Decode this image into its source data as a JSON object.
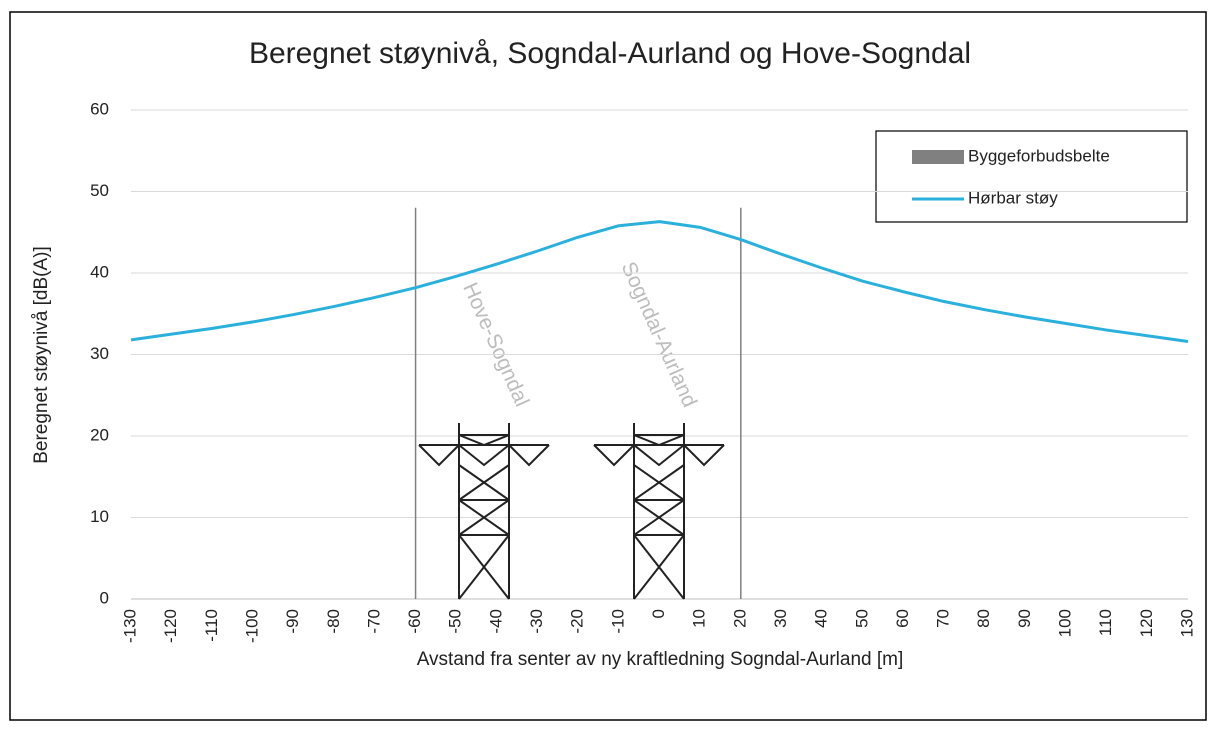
{
  "chart_data": {
    "type": "line",
    "title": "Beregnet støynivå, Sogndal-Aurland og Hove-Sogndal",
    "x_label": "Avstand fra senter av ny kraftledning Sogndal-Aurland [m]",
    "y_label": "Beregnet støynivå [dB(A)]",
    "xlim": [
      -130,
      130
    ],
    "xticks": [
      -130,
      -120,
      -110,
      -100,
      -90,
      -80,
      -70,
      -60,
      -50,
      -40,
      -30,
      -20,
      -10,
      0,
      10,
      20,
      30,
      40,
      50,
      60,
      70,
      80,
      90,
      100,
      110,
      120,
      130
    ],
    "ylim": [
      0,
      60
    ],
    "yticks": [
      0,
      10,
      20,
      30,
      40,
      50,
      60
    ],
    "grid": true,
    "legend": "upper right",
    "annotations": [
      "Hove-Sogndal",
      "Sogndal-Aurland"
    ],
    "series": [
      {
        "name": "Byggeforbudsbelte",
        "color": "#808080",
        "kind": "vline",
        "x": [
          -60,
          20
        ],
        "values": [
          48,
          48
        ]
      },
      {
        "name": "Hørbar støy",
        "color": "#2ab0dc",
        "kind": "line",
        "x": [
          -130,
          -120,
          -110,
          -100,
          -90,
          -80,
          -70,
          -60,
          -50,
          -40,
          -30,
          -20,
          -10,
          0,
          10,
          20,
          30,
          40,
          50,
          60,
          70,
          80,
          90,
          100,
          110,
          120,
          130
        ],
        "values": [
          31.8,
          32.5,
          33.2,
          34.0,
          34.9,
          35.9,
          37.0,
          38.2,
          39.6,
          41.1,
          42.7,
          44.4,
          45.8,
          46.3,
          45.6,
          44.1,
          42.3,
          40.6,
          39.0,
          37.7,
          36.5,
          35.5,
          34.6,
          33.8,
          33.0,
          32.3,
          31.6
        ]
      }
    ]
  }
}
